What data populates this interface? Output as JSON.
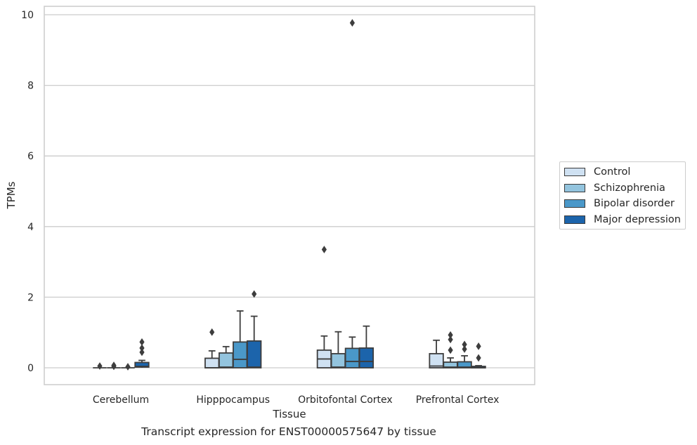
{
  "caption": "Transcript expression for ENST00000575647 by tissue",
  "chart_data": {
    "type": "box",
    "title": "",
    "xlabel": "Tissue",
    "ylabel": "TPMs",
    "ylim": [
      -0.45,
      10.25
    ],
    "yticks": [
      0,
      2,
      4,
      6,
      8,
      10
    ],
    "grid": "horizontal",
    "legend_placement": "right",
    "categories": [
      "Cerebellum",
      "Hipppocampus",
      "Orbitofontal Cortex",
      "Prefrontal Cortex"
    ],
    "series": [
      {
        "name": "Control",
        "color": "#cfe1f2",
        "boxes": [
          {
            "q1": 0,
            "median": 0,
            "q3": 0,
            "whisker_low": 0,
            "whisker_high": 0,
            "outliers": [
              0.05
            ]
          },
          {
            "q1": 0,
            "median": 0,
            "q3": 0.27,
            "whisker_low": 0,
            "whisker_high": 0.48,
            "outliers": [
              1.01
            ]
          },
          {
            "q1": 0,
            "median": 0.25,
            "q3": 0.5,
            "whisker_low": 0,
            "whisker_high": 0.9,
            "outliers": [
              3.35
            ]
          },
          {
            "q1": 0,
            "median": 0.05,
            "q3": 0.4,
            "whisker_low": 0,
            "whisker_high": 0.78,
            "outliers": []
          }
        ]
      },
      {
        "name": "Schizophrenia",
        "color": "#93c4de",
        "boxes": [
          {
            "q1": 0,
            "median": 0,
            "q3": 0,
            "whisker_low": 0,
            "whisker_high": 0,
            "outliers": [
              0.04,
              0.07
            ]
          },
          {
            "q1": 0,
            "median": 0.02,
            "q3": 0.42,
            "whisker_low": 0,
            "whisker_high": 0.6,
            "outliers": []
          },
          {
            "q1": 0,
            "median": 0.02,
            "q3": 0.4,
            "whisker_low": 0,
            "whisker_high": 1.02,
            "outliers": []
          },
          {
            "q1": 0,
            "median": 0.02,
            "q3": 0.16,
            "whisker_low": 0,
            "whisker_high": 0.28,
            "outliers": [
              0.5,
              0.8,
              0.93
            ]
          }
        ]
      },
      {
        "name": "Bipolar disorder",
        "color": "#4a98c9",
        "boxes": [
          {
            "q1": 0,
            "median": 0,
            "q3": 0,
            "whisker_low": 0,
            "whisker_high": 0,
            "outliers": [
              0.03
            ]
          },
          {
            "q1": 0,
            "median": 0.24,
            "q3": 0.73,
            "whisker_low": 0,
            "whisker_high": 1.61,
            "outliers": []
          },
          {
            "q1": 0,
            "median": 0.18,
            "q3": 0.55,
            "whisker_low": 0,
            "whisker_high": 0.87,
            "outliers": [
              9.77
            ]
          },
          {
            "q1": 0,
            "median": 0.02,
            "q3": 0.17,
            "whisker_low": 0,
            "whisker_high": 0.34,
            "outliers": [
              0.53,
              0.66
            ]
          }
        ]
      },
      {
        "name": "Major depression",
        "color": "#1c64ab",
        "boxes": [
          {
            "q1": 0.02,
            "median": 0.04,
            "q3": 0.15,
            "whisker_low": 0,
            "whisker_high": 0.21,
            "outliers": [
              0.44,
              0.56,
              0.73
            ]
          },
          {
            "q1": 0,
            "median": 0.02,
            "q3": 0.76,
            "whisker_low": 0,
            "whisker_high": 1.46,
            "outliers": [
              2.09
            ]
          },
          {
            "q1": 0,
            "median": 0.18,
            "q3": 0.56,
            "whisker_low": 0,
            "whisker_high": 1.18,
            "outliers": []
          },
          {
            "q1": 0,
            "median": 0,
            "q3": 0.04,
            "whisker_low": 0,
            "whisker_high": 0.06,
            "outliers": [
              0.28,
              0.61
            ]
          }
        ]
      }
    ]
  }
}
